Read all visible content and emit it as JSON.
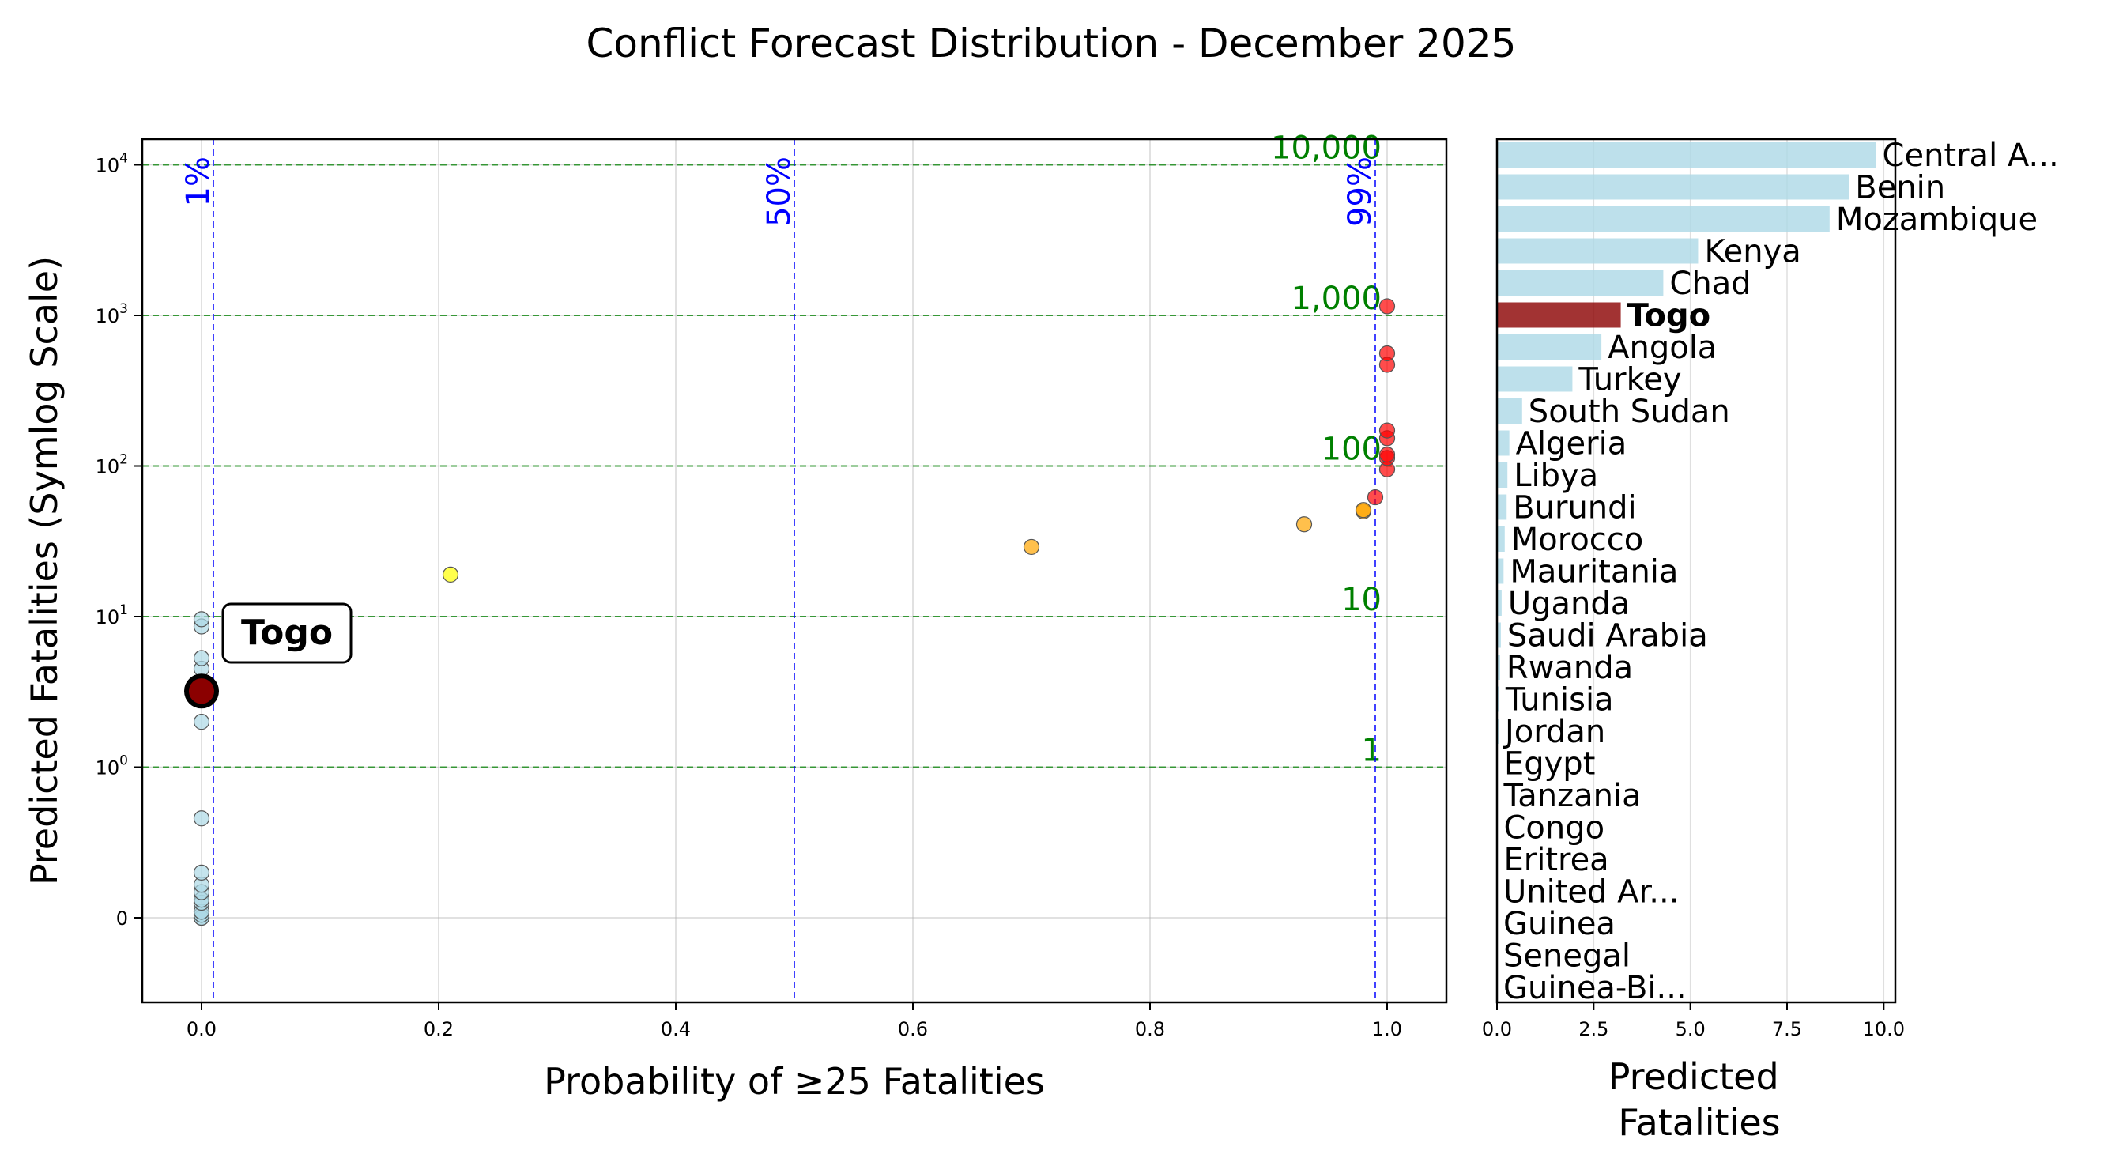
{
  "title": "Conflict Forecast Distribution - December 2025",
  "colors": {
    "low": "#add8e6",
    "yellow": "#ffff00",
    "orange": "#ffa500",
    "red": "#ff0000",
    "highlight": "#8b0000",
    "reference_blue": "#0000ff",
    "reference_green": "#008000",
    "bar": "#add8e6"
  },
  "chart_data": [
    {
      "type": "scatter",
      "xlabel": "Probability of ≥25 Fatalities",
      "ylabel": "Predicted Fatalities (Symlog Scale)",
      "yscale": "symlog",
      "xlim": [
        -0.05,
        1.05
      ],
      "ylim_display": "below 0 to just above 10^4",
      "grid": true,
      "x_ticks": [
        "0.0",
        "0.2",
        "0.4",
        "0.6",
        "0.8",
        "1.0"
      ],
      "y_ticks": [
        {
          "value": 0,
          "base": "0",
          "exp": ""
        },
        {
          "value": 1,
          "base": "10",
          "exp": "0"
        },
        {
          "value": 10,
          "base": "10",
          "exp": "1"
        },
        {
          "value": 100,
          "base": "10",
          "exp": "2"
        },
        {
          "value": 1000,
          "base": "10",
          "exp": "3"
        },
        {
          "value": 10000,
          "base": "10",
          "exp": "4"
        }
      ],
      "vertical_refs": [
        {
          "x": 0.01,
          "label": "1%"
        },
        {
          "x": 0.5,
          "label": "50%"
        },
        {
          "x": 0.99,
          "label": "99%"
        }
      ],
      "horizontal_refs": [
        {
          "y": 1,
          "label": "1"
        },
        {
          "y": 10,
          "label": "10"
        },
        {
          "y": 100,
          "label": "100"
        },
        {
          "y": 1000,
          "label": "1,000"
        },
        {
          "y": 10000,
          "label": "10,000"
        }
      ],
      "points": [
        {
          "x": 0.0,
          "y": 0.0,
          "c": "low"
        },
        {
          "x": 0.0,
          "y": 0.0,
          "c": "low"
        },
        {
          "x": 0.0,
          "y": 0.02,
          "c": "low"
        },
        {
          "x": 0.0,
          "y": 0.04,
          "c": "low"
        },
        {
          "x": 0.0,
          "y": 0.1,
          "c": "low"
        },
        {
          "x": 0.0,
          "y": 0.12,
          "c": "low"
        },
        {
          "x": 0.0,
          "y": 0.17,
          "c": "low"
        },
        {
          "x": 0.0,
          "y": 0.22,
          "c": "low"
        },
        {
          "x": 0.0,
          "y": 0.3,
          "c": "low"
        },
        {
          "x": 0.0,
          "y": 0.66,
          "c": "low"
        },
        {
          "x": 0.0,
          "y": 2.0,
          "c": "low"
        },
        {
          "x": 0.0,
          "y": 3.3,
          "c": "low"
        },
        {
          "x": 0.0,
          "y": 4.5,
          "c": "low"
        },
        {
          "x": 0.0,
          "y": 5.3,
          "c": "low"
        },
        {
          "x": 0.0,
          "y": 8.6,
          "c": "low"
        },
        {
          "x": 0.0,
          "y": 9.6,
          "c": "low"
        },
        {
          "x": 0.21,
          "y": 19,
          "c": "yellow"
        },
        {
          "x": 0.7,
          "y": 29,
          "c": "orange"
        },
        {
          "x": 0.93,
          "y": 41,
          "c": "orange"
        },
        {
          "x": 0.98,
          "y": 50,
          "c": "orange"
        },
        {
          "x": 0.98,
          "y": 51,
          "c": "orange"
        },
        {
          "x": 0.99,
          "y": 62,
          "c": "red"
        },
        {
          "x": 1.0,
          "y": 95,
          "c": "red"
        },
        {
          "x": 1.0,
          "y": 113,
          "c": "red"
        },
        {
          "x": 1.0,
          "y": 119,
          "c": "red"
        },
        {
          "x": 1.0,
          "y": 153,
          "c": "red"
        },
        {
          "x": 1.0,
          "y": 172,
          "c": "red"
        },
        {
          "x": 1.0,
          "y": 470,
          "c": "red"
        },
        {
          "x": 1.0,
          "y": 560,
          "c": "red"
        },
        {
          "x": 1.0,
          "y": 1150,
          "c": "red"
        }
      ],
      "highlight": {
        "label": "Togo",
        "x": 0.0,
        "y": 3.2
      }
    },
    {
      "type": "bar",
      "orientation": "horizontal",
      "xlabel_lines": [
        "Predicted",
        "Fatalities"
      ],
      "xlim": [
        0,
        10.3
      ],
      "x_ticks": [
        "0.0",
        "2.5",
        "5.0",
        "7.5",
        "10.0"
      ],
      "highlight_category": "Togo",
      "categories": [
        "Central A...",
        "Benin",
        "Mozambique",
        "Kenya",
        "Chad",
        "Togo",
        "Angola",
        "Turkey",
        "South Sudan",
        "Algeria",
        "Libya",
        "Burundi",
        "Morocco",
        "Mauritania",
        "Uganda",
        "Saudi Arabia",
        "Rwanda",
        "Tunisia",
        "Jordan",
        "Egypt",
        "Tanzania",
        "Congo",
        "Eritrea",
        "United Ar...",
        "Guinea",
        "Senegal",
        "Guinea-Bi..."
      ],
      "values": [
        9.8,
        9.1,
        8.6,
        5.2,
        4.3,
        3.2,
        2.7,
        1.95,
        0.65,
        0.32,
        0.27,
        0.25,
        0.2,
        0.17,
        0.12,
        0.1,
        0.08,
        0.06,
        0.04,
        0.02,
        0.01,
        0.01,
        0.01,
        0.0,
        0.0,
        0.0,
        0.0
      ]
    }
  ]
}
